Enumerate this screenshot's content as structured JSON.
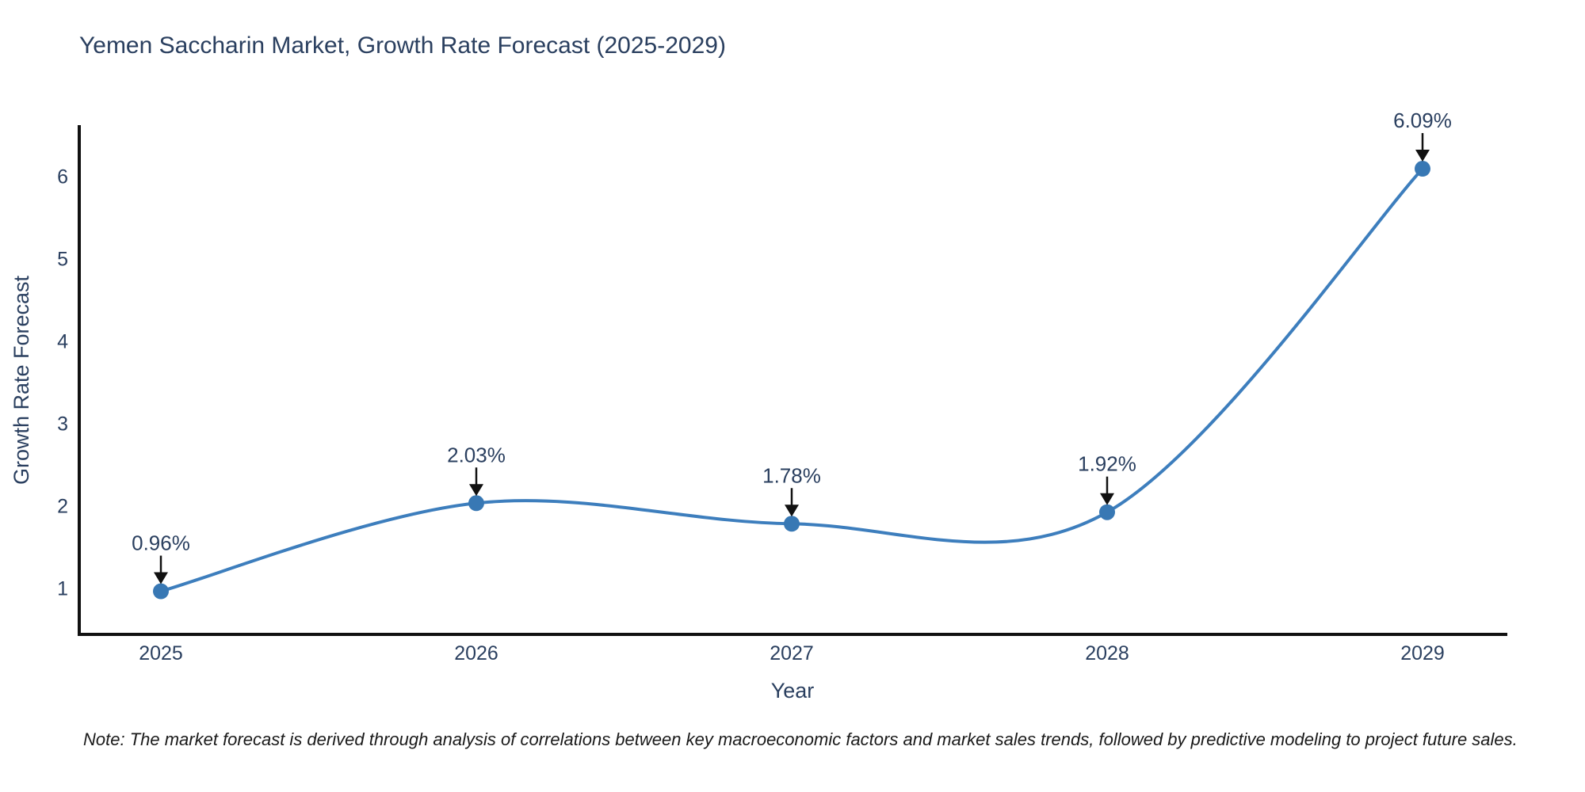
{
  "note": "Note: The market forecast is derived through analysis of correlations between key macroeconomic factors and market sales trends, followed by predictive modeling to project future sales.",
  "chart_data": {
    "type": "line",
    "title": "Yemen Saccharin Market, Growth Rate Forecast (2025-2029)",
    "xlabel": "Year",
    "ylabel": "Growth Rate Forecast",
    "x": [
      2025,
      2026,
      2027,
      2028,
      2029
    ],
    "values": [
      0.96,
      2.03,
      1.78,
      1.92,
      6.09
    ],
    "point_labels": [
      "0.96%",
      "2.03%",
      "1.78%",
      "1.92%",
      "6.09%"
    ],
    "yticks": [
      1,
      2,
      3,
      4,
      5,
      6
    ],
    "xlim": [
      2024.74,
      2029.26
    ],
    "ylim": [
      0.44,
      6.6
    ],
    "line_color": "#3d7ebd",
    "marker_color": "#3878b4",
    "annotation_arrow_color": "#111111",
    "smooth": true,
    "grid": false,
    "legend": "none"
  }
}
